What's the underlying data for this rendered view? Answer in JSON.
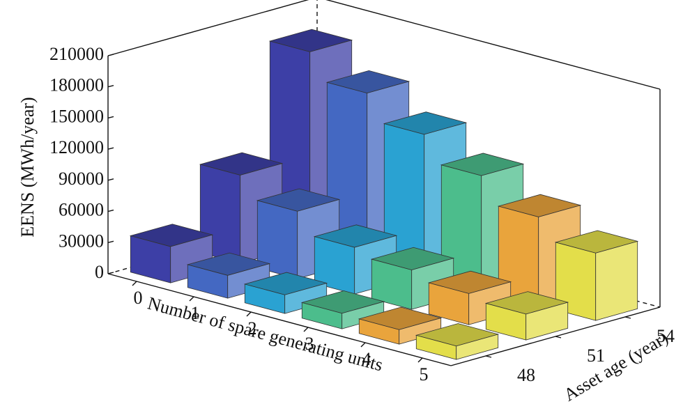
{
  "chart_data": {
    "type": "bar3d",
    "xlabel": "Number of spare generating units",
    "ylabel": "Asset age (year)",
    "zlabel": "EENS (MWh/year)",
    "categories": [
      "0",
      "1",
      "2",
      "3",
      "4",
      "5"
    ],
    "colors": [
      "#3d3fa6",
      "#4468c2",
      "#2aa2d2",
      "#4cbd8c",
      "#e9a43c",
      "#e3de4a"
    ],
    "series": [
      {
        "name": "48",
        "values": [
          35000,
          22000,
          18000,
          15000,
          14000,
          13000
        ]
      },
      {
        "name": "51",
        "values": [
          85000,
          65000,
          45000,
          38000,
          30000,
          25000
        ]
      },
      {
        "name": "54",
        "values": [
          185000,
          160000,
          135000,
          110000,
          85000,
          65000
        ]
      }
    ],
    "zlim": [
      0,
      210000
    ],
    "zticks": [
      0,
      30000,
      60000,
      90000,
      120000,
      150000,
      180000,
      210000
    ]
  }
}
